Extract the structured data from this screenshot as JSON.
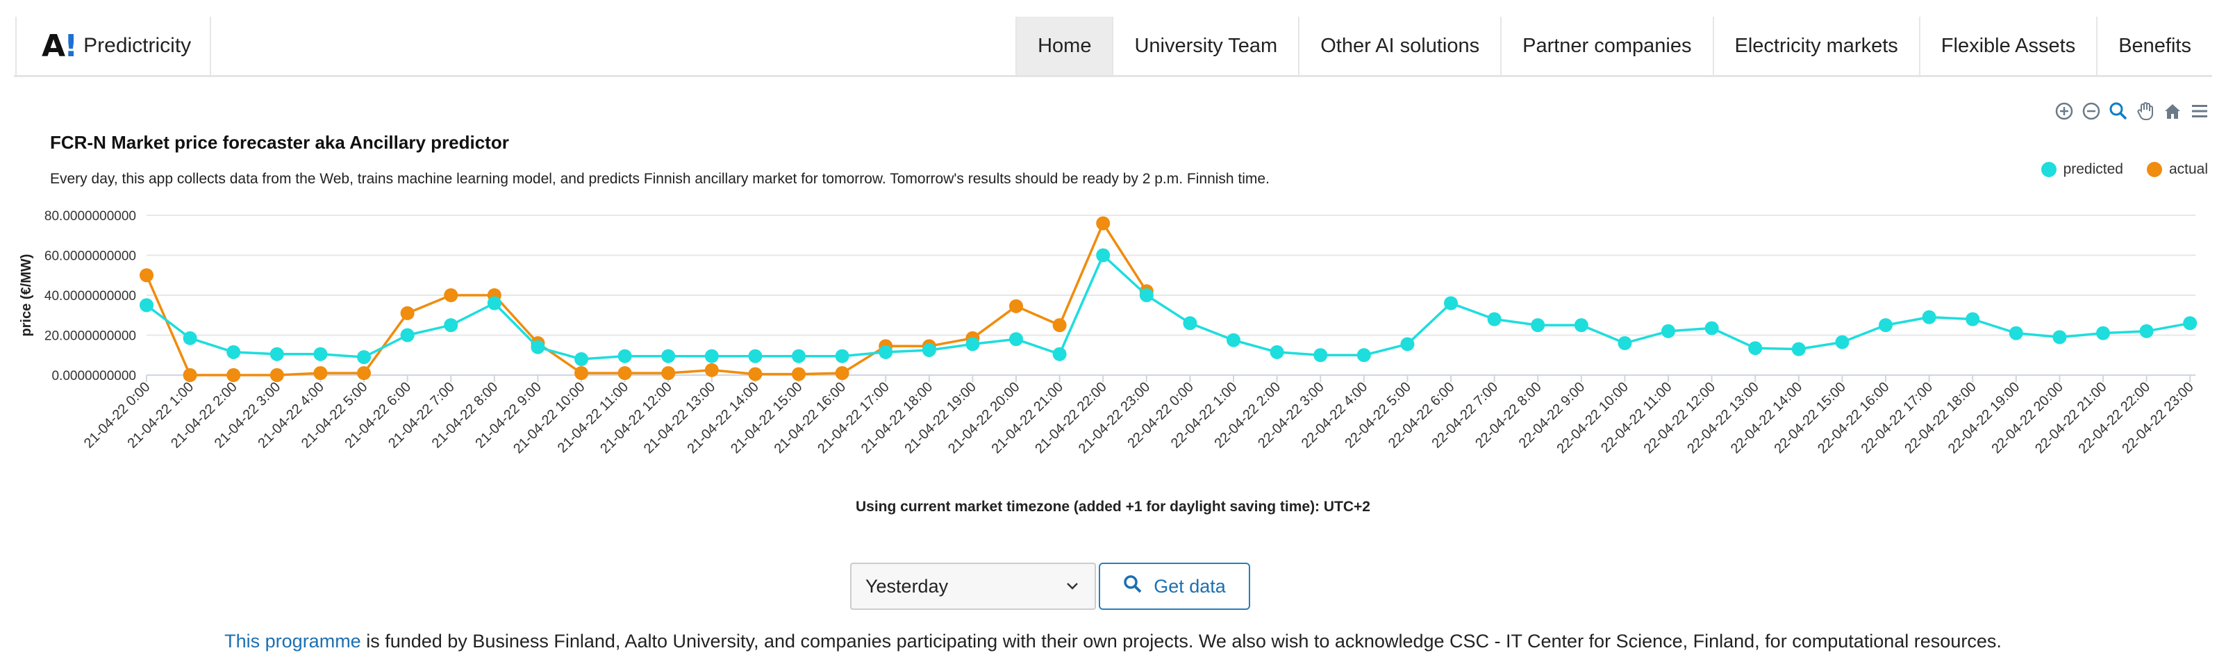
{
  "brand": {
    "logo_letter": "A",
    "logo_mark": "!",
    "name": "Predictricity"
  },
  "nav": [
    {
      "label": "Home",
      "active": true
    },
    {
      "label": "University Team"
    },
    {
      "label": "Other AI solutions"
    },
    {
      "label": "Partner companies"
    },
    {
      "label": "Electricity markets"
    },
    {
      "label": "Flexible Assets"
    },
    {
      "label": "Benefits"
    }
  ],
  "toolbar": [
    "zoom-in-icon",
    "zoom-out-icon",
    "magnifier-icon",
    "pan-hand-icon",
    "home-icon",
    "menu-icon"
  ],
  "timezone_note": "Using current market timezone (added +1 for daylight saving time): UTC+2",
  "controls": {
    "range_value": "Yesterday",
    "get_label": "Get data"
  },
  "footer": {
    "link_text": "This programme",
    "text": " is funded by Business Finland, Aalto University, and companies participating with their own projects. We also wish to acknowledge CSC - IT Center for Science, Finland, for computational resources."
  },
  "colors": {
    "predicted": "#1edddd",
    "actual": "#f08c0e",
    "link": "#1b6fb2"
  },
  "chart_data": {
    "type": "line",
    "title": "FCR-N Market price forecaster aka Ancillary predictor",
    "subtitle": "Every day, this app collects data from the Web, trains machine learning model, and predicts Finnish ancillary market for tomorrow. Tomorrow's results should be ready by 2 p.m. Finnish time.",
    "xlabel": "",
    "ylabel": "price (€/MW)",
    "ylim": [
      0,
      80
    ],
    "yticks": [
      "0.0000000000",
      "20.0000000000",
      "40.0000000000",
      "60.0000000000",
      "80.0000000000"
    ],
    "grid": true,
    "legend_position": "top-right",
    "x": [
      "21-04-22 0:00",
      "21-04-22 1:00",
      "21-04-22 2:00",
      "21-04-22 3:00",
      "21-04-22 4:00",
      "21-04-22 5:00",
      "21-04-22 6:00",
      "21-04-22 7:00",
      "21-04-22 8:00",
      "21-04-22 9:00",
      "21-04-22 10:00",
      "21-04-22 11:00",
      "21-04-22 12:00",
      "21-04-22 13:00",
      "21-04-22 14:00",
      "21-04-22 15:00",
      "21-04-22 16:00",
      "21-04-22 17:00",
      "21-04-22 18:00",
      "21-04-22 19:00",
      "21-04-22 20:00",
      "21-04-22 21:00",
      "21-04-22 22:00",
      "21-04-22 23:00",
      "22-04-22 0:00",
      "22-04-22 1:00",
      "22-04-22 2:00",
      "22-04-22 3:00",
      "22-04-22 4:00",
      "22-04-22 5:00",
      "22-04-22 6:00",
      "22-04-22 7:00",
      "22-04-22 8:00",
      "22-04-22 9:00",
      "22-04-22 10:00",
      "22-04-22 11:00",
      "22-04-22 12:00",
      "22-04-22 13:00",
      "22-04-22 14:00",
      "22-04-22 15:00",
      "22-04-22 16:00",
      "22-04-22 17:00",
      "22-04-22 18:00",
      "22-04-22 19:00",
      "22-04-22 20:00",
      "22-04-22 21:00",
      "22-04-22 22:00",
      "22-04-22 23:00"
    ],
    "series": [
      {
        "name": "predicted",
        "values": [
          35,
          18.5,
          11.5,
          10.5,
          10.5,
          9,
          20,
          25,
          36,
          14,
          8,
          9.5,
          9.5,
          9.5,
          9.5,
          9.5,
          9.5,
          11.5,
          12.5,
          15.5,
          18,
          10.5,
          60,
          40,
          26,
          17.5,
          11.5,
          10,
          10,
          15.5,
          36,
          28,
          25,
          25,
          16,
          22,
          23.5,
          13.5,
          13,
          16.5,
          25,
          29,
          28,
          21,
          19,
          21,
          22,
          26
        ]
      },
      {
        "name": "actual",
        "values": [
          50,
          0,
          0,
          0,
          1,
          1,
          31,
          40,
          40,
          16,
          1,
          1,
          1,
          2.5,
          0.5,
          0.5,
          1,
          14.5,
          14.5,
          18.5,
          34.5,
          25,
          76,
          42,
          null,
          null,
          null,
          null,
          null,
          null,
          null,
          null,
          null,
          null,
          null,
          null,
          null,
          null,
          null,
          null,
          null,
          null,
          null,
          null,
          null,
          null,
          null,
          null
        ]
      }
    ]
  }
}
